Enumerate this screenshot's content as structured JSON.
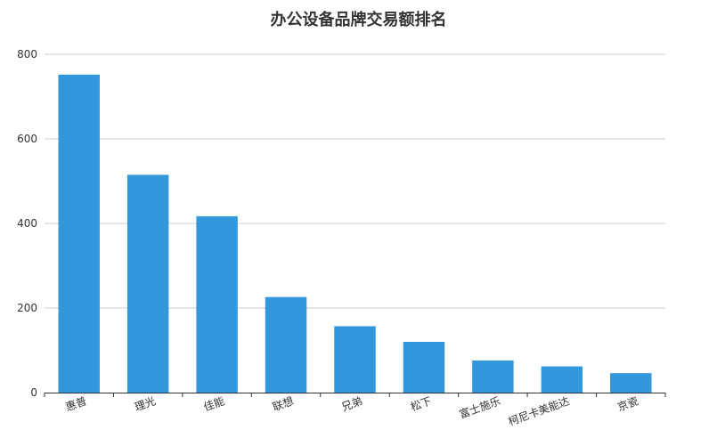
{
  "chart_data": {
    "type": "bar",
    "title": "办公设备品牌交易额排名",
    "xlabel": "",
    "ylabel": "",
    "categories": [
      "惠普",
      "理光",
      "佳能",
      "联想",
      "兄弟",
      "松下",
      "富士施乐",
      "柯尼卡美能达",
      "京瓷"
    ],
    "values": [
      752,
      515,
      417,
      226,
      157,
      120,
      76,
      62,
      46
    ],
    "ylim": [
      0,
      800
    ],
    "yticks": [
      0,
      200,
      400,
      600,
      800
    ],
    "grid": true,
    "legend": "none",
    "bar_color": "#3398db",
    "grid_color": "#cccccc",
    "axis_color": "#333333",
    "text_color": "#333333"
  }
}
